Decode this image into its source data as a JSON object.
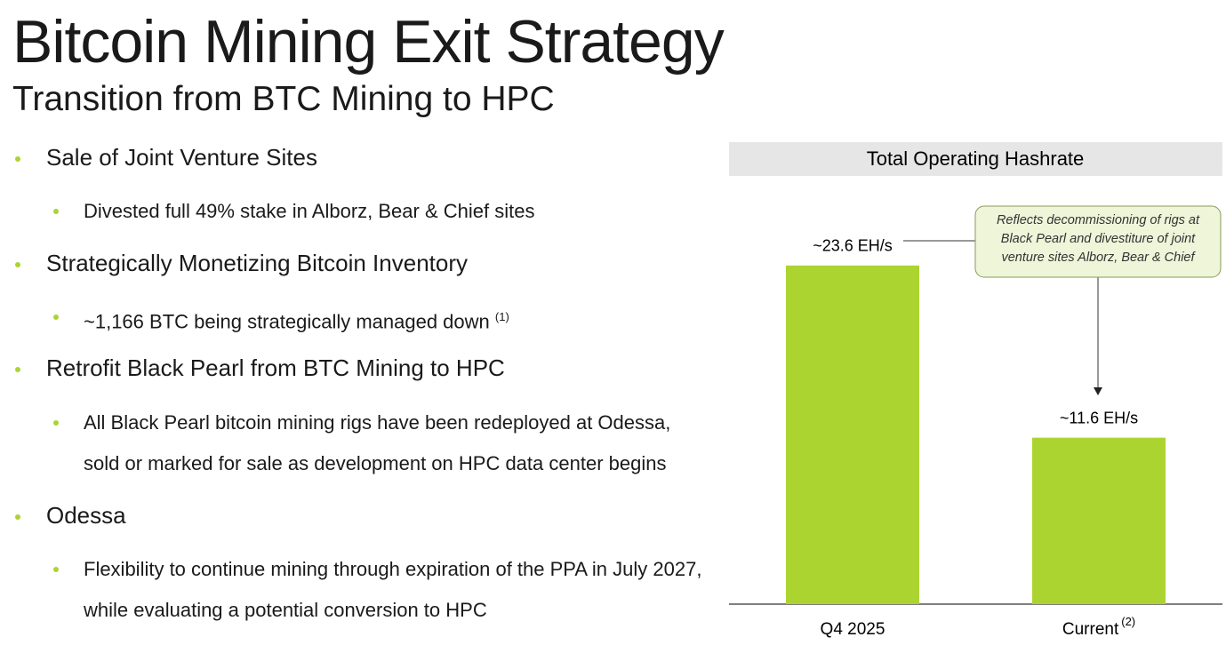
{
  "title": "Bitcoin Mining Exit Strategy",
  "subtitle": "Transition from BTC Mining to HPC",
  "bullets": [
    {
      "text": "Sale of Joint Venture Sites",
      "sub": [
        {
          "text": "Divested full 49% stake in Alborz, Bear & Chief sites"
        }
      ]
    },
    {
      "text": "Strategically Monetizing Bitcoin Inventory",
      "sub": [
        {
          "text": "~1,166 BTC being strategically managed down",
          "note": "(1)"
        }
      ]
    },
    {
      "text": "Retrofit Black Pearl from BTC Mining to HPC",
      "sub": [
        {
          "text": "All Black Pearl bitcoin mining rigs have been redeployed at Odessa, sold or marked for sale as development on HPC data center begins"
        }
      ]
    },
    {
      "text": "Odessa",
      "sub": [
        {
          "text": "Flexibility to continue mining through expiration of the PPA in July 2027, while evaluating a potential conversion to HPC"
        }
      ]
    }
  ],
  "chart_data": {
    "type": "bar",
    "title": "Total Operating Hashrate",
    "categories": [
      "Q4 2025",
      "Current"
    ],
    "category_notes": [
      null,
      "(2)"
    ],
    "values": [
      23.6,
      11.6
    ],
    "value_labels": [
      "~23.6 EH/s",
      "~11.6 EH/s"
    ],
    "color": "#acd431",
    "annotation": "Reflects decommissioning of rigs at Black Pearl and divestiture of joint venture sites Alborz, Bear & Chief"
  }
}
